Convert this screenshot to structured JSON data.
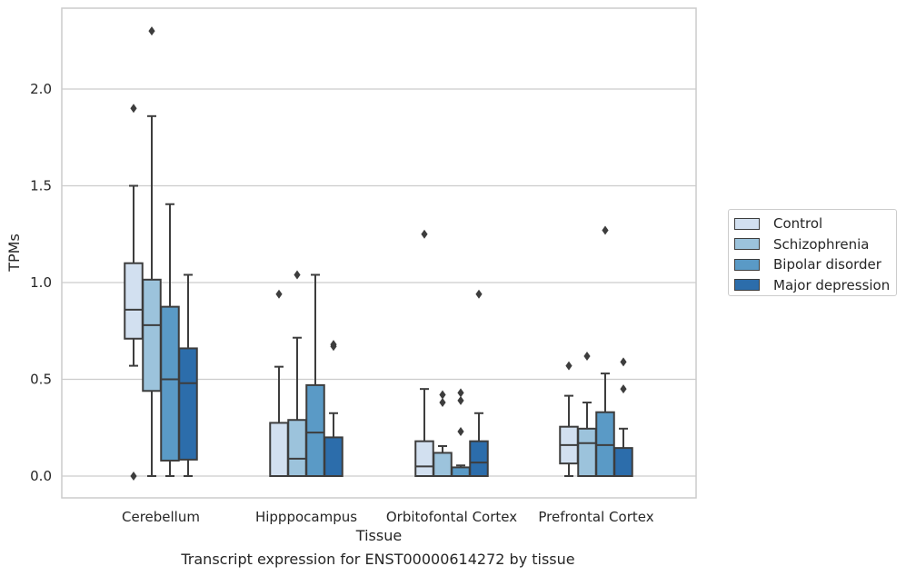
{
  "chart_data": {
    "type": "box",
    "title": "",
    "xlabel": "Tissue",
    "ylabel": "TPMs",
    "caption": "Transcript expression for ENST00000614272 by tissue",
    "categories": [
      "Cerebellum",
      "Hipppocampus",
      "Orbitofontal Cortex",
      "Prefrontal Cortex"
    ],
    "ylim": [
      -0.11,
      2.4
    ],
    "yticks": [
      "0.0",
      "0.5",
      "1.0",
      "1.5",
      "2.0"
    ],
    "ytick_values": [
      0.0,
      0.5,
      1.0,
      1.5,
      2.0
    ],
    "grid": "horizontal",
    "legend_position": "right",
    "series": [
      {
        "name": "Control",
        "color": "#d2e0f0",
        "boxes": [
          {
            "whislo": 0.57,
            "q1": 0.71,
            "med": 0.86,
            "q3": 1.1,
            "whishi": 1.5,
            "fliers": [
              1.9,
              0.0
            ]
          },
          {
            "whislo": 0.0,
            "q1": 0.0,
            "med": 0.0,
            "q3": 0.275,
            "whishi": 0.565,
            "fliers": [
              0.94
            ]
          },
          {
            "whislo": 0.0,
            "q1": 0.0,
            "med": 0.05,
            "q3": 0.18,
            "whishi": 0.45,
            "fliers": [
              1.25
            ]
          },
          {
            "whislo": 0.0,
            "q1": 0.065,
            "med": 0.16,
            "q3": 0.255,
            "whishi": 0.415,
            "fliers": [
              0.57
            ]
          }
        ]
      },
      {
        "name": "Schizophrenia",
        "color": "#9cc3dc",
        "boxes": [
          {
            "whislo": 0.0,
            "q1": 0.44,
            "med": 0.78,
            "q3": 1.015,
            "whishi": 1.86,
            "fliers": [
              2.3
            ]
          },
          {
            "whislo": 0.0,
            "q1": 0.0,
            "med": 0.09,
            "q3": 0.29,
            "whishi": 0.715,
            "fliers": [
              1.04
            ]
          },
          {
            "whislo": 0.0,
            "q1": 0.0,
            "med": 0.0,
            "q3": 0.12,
            "whishi": 0.155,
            "fliers": [
              0.42,
              0.38
            ]
          },
          {
            "whislo": 0.0,
            "q1": 0.0,
            "med": 0.17,
            "q3": 0.245,
            "whishi": 0.38,
            "fliers": [
              0.62
            ]
          }
        ]
      },
      {
        "name": "Bipolar disorder",
        "color": "#5a9ac6",
        "boxes": [
          {
            "whislo": 0.0,
            "q1": 0.08,
            "med": 0.5,
            "q3": 0.875,
            "whishi": 1.405,
            "fliers": []
          },
          {
            "whislo": 0.0,
            "q1": 0.0,
            "med": 0.225,
            "q3": 0.47,
            "whishi": 1.04,
            "fliers": []
          },
          {
            "whislo": 0.0,
            "q1": 0.0,
            "med": 0.0,
            "q3": 0.045,
            "whishi": 0.055,
            "fliers": [
              0.43,
              0.39,
              0.23
            ]
          },
          {
            "whislo": 0.0,
            "q1": 0.0,
            "med": 0.16,
            "q3": 0.33,
            "whishi": 0.53,
            "fliers": [
              1.27
            ]
          }
        ]
      },
      {
        "name": "Major depression",
        "color": "#2c6dab",
        "boxes": [
          {
            "whislo": 0.0,
            "q1": 0.085,
            "med": 0.48,
            "q3": 0.66,
            "whishi": 1.04,
            "fliers": []
          },
          {
            "whislo": 0.0,
            "q1": 0.0,
            "med": 0.0,
            "q3": 0.2,
            "whishi": 0.325,
            "fliers": [
              0.68,
              0.67
            ]
          },
          {
            "whislo": 0.0,
            "q1": 0.0,
            "med": 0.07,
            "q3": 0.18,
            "whishi": 0.325,
            "fliers": [
              0.94
            ]
          },
          {
            "whislo": 0.0,
            "q1": 0.0,
            "med": 0.0,
            "q3": 0.145,
            "whishi": 0.245,
            "fliers": [
              0.59,
              0.45
            ]
          }
        ]
      }
    ]
  }
}
